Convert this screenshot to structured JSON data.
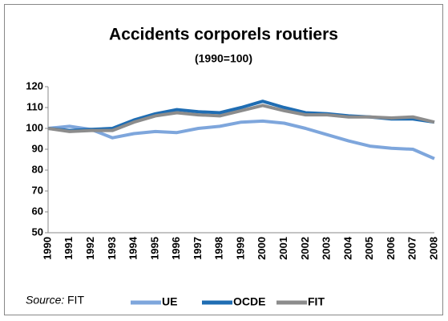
{
  "chart_data": {
    "type": "line",
    "title": "Accidents corporels routiers",
    "subtitle": "(1990=100)",
    "source_label": "Source:",
    "source": "FIT",
    "categories": [
      "1990",
      "1991",
      "1992",
      "1993",
      "1994",
      "1995",
      "1996",
      "1997",
      "1998",
      "1999",
      "2000",
      "2001",
      "2002",
      "2003",
      "2004",
      "2005",
      "2006",
      "2007",
      "2008"
    ],
    "series": [
      {
        "name": "UE",
        "color": "#7ea6dc",
        "values": [
          100,
          101,
          99.5,
          95.5,
          97.5,
          98.5,
          98,
          100,
          101,
          103,
          103.5,
          102.5,
          100,
          97,
          94,
          91.5,
          90.5,
          90,
          85.5
        ]
      },
      {
        "name": "OCDE",
        "color": "#1f6db3",
        "values": [
          100,
          99,
          99.5,
          100,
          104,
          107,
          109,
          108,
          107.5,
          110,
          113,
          110,
          107.5,
          107,
          106,
          105.5,
          104.5,
          104.5,
          103
        ]
      },
      {
        "name": "FIT",
        "color": "#8c8c8c",
        "values": [
          100,
          98.5,
          99,
          99,
          103,
          106,
          107.5,
          106.5,
          106,
          108.5,
          111,
          108.5,
          106.5,
          106.5,
          105.5,
          105.5,
          105,
          105.5,
          103
        ]
      }
    ],
    "ylim": [
      50,
      120
    ],
    "yticks": [
      50,
      60,
      70,
      80,
      90,
      100,
      110,
      120
    ],
    "grid": false,
    "legend": "bottom"
  }
}
